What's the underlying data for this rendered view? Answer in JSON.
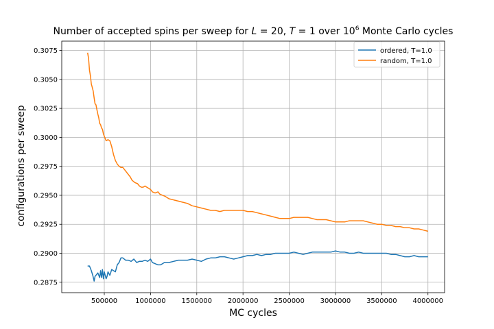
{
  "chart_data": {
    "type": "line",
    "title": {
      "prefix": "Number of accepted spins per sweep for ",
      "L_var": "L",
      "L_value": " = 20, ",
      "T_var": "T",
      "T_value": " = 1 over 10",
      "exponent": "6",
      "suffix": " Monte Carlo cycles"
    },
    "xlabel": "MC cycles",
    "ylabel": "configurations per sweep",
    "xlim": [
      40000,
      4180000
    ],
    "ylim": [
      0.2866,
      0.3083
    ],
    "xticks": [
      500000,
      1000000,
      1500000,
      2000000,
      2500000,
      3000000,
      3500000,
      4000000
    ],
    "xtick_labels": [
      "500000",
      "1000000",
      "1500000",
      "2000000",
      "2500000",
      "3000000",
      "3500000",
      "4000000"
    ],
    "yticks": [
      0.2875,
      0.29,
      0.2925,
      0.295,
      0.2975,
      0.3,
      0.3025,
      0.305,
      0.3075
    ],
    "ytick_labels": [
      "0.2875",
      "0.2900",
      "0.2925",
      "0.2950",
      "0.2975",
      "0.3000",
      "0.3025",
      "0.3050",
      "0.3075"
    ],
    "grid": true,
    "legend_position": "top-right",
    "series": [
      {
        "name": "ordered, T=1.0",
        "color": "#1f77b4",
        "x": [
          320000,
          340000,
          350000,
          360000,
          375000,
          390000,
          400000,
          410000,
          430000,
          450000,
          460000,
          470000,
          480000,
          490000,
          500000,
          510000,
          520000,
          530000,
          540000,
          560000,
          580000,
          600000,
          620000,
          640000,
          660000,
          680000,
          700000,
          730000,
          760000,
          790000,
          820000,
          850000,
          880000,
          910000,
          940000,
          970000,
          1000000,
          1020000,
          1050000,
          1080000,
          1110000,
          1150000,
          1200000,
          1250000,
          1300000,
          1350000,
          1400000,
          1450000,
          1500000,
          1550000,
          1600000,
          1650000,
          1700000,
          1750000,
          1800000,
          1850000,
          1900000,
          1950000,
          2000000,
          2050000,
          2100000,
          2150000,
          2200000,
          2250000,
          2300000,
          2350000,
          2400000,
          2450000,
          2500000,
          2550000,
          2600000,
          2650000,
          2700000,
          2750000,
          2800000,
          2850000,
          2900000,
          2950000,
          3000000,
          3050000,
          3100000,
          3150000,
          3200000,
          3250000,
          3300000,
          3350000,
          3400000,
          3450000,
          3500000,
          3550000,
          3600000,
          3650000,
          3700000,
          3750000,
          3800000,
          3850000,
          3900000,
          3950000,
          4000000
        ],
        "y": [
          0.2889,
          0.2889,
          0.2887,
          0.2885,
          0.2881,
          0.2876,
          0.288,
          0.2881,
          0.2883,
          0.2879,
          0.2885,
          0.2879,
          0.2886,
          0.2878,
          0.2884,
          0.2881,
          0.2878,
          0.288,
          0.2884,
          0.2881,
          0.2886,
          0.2885,
          0.2884,
          0.289,
          0.2892,
          0.2896,
          0.2896,
          0.2894,
          0.2894,
          0.2893,
          0.2895,
          0.2892,
          0.2893,
          0.2893,
          0.2894,
          0.2893,
          0.2895,
          0.2892,
          0.2891,
          0.289,
          0.289,
          0.2892,
          0.2892,
          0.2893,
          0.2894,
          0.2894,
          0.2894,
          0.2895,
          0.2894,
          0.2893,
          0.2895,
          0.2896,
          0.2896,
          0.2897,
          0.2897,
          0.2896,
          0.2895,
          0.2896,
          0.2897,
          0.2898,
          0.2898,
          0.2899,
          0.2898,
          0.2899,
          0.2899,
          0.29,
          0.29,
          0.29,
          0.29,
          0.2901,
          0.29,
          0.2899,
          0.29,
          0.2901,
          0.2901,
          0.2901,
          0.2901,
          0.2901,
          0.2902,
          0.2901,
          0.2901,
          0.29,
          0.29,
          0.2901,
          0.29,
          0.29,
          0.29,
          0.29,
          0.29,
          0.29,
          0.2899,
          0.2899,
          0.2898,
          0.2897,
          0.2897,
          0.2898,
          0.2897,
          0.2897,
          0.2897
        ]
      },
      {
        "name": "random, T=1.0",
        "color": "#ff7f0e",
        "x": [
          320000,
          330000,
          340000,
          350000,
          360000,
          370000,
          380000,
          390000,
          400000,
          410000,
          420000,
          430000,
          440000,
          450000,
          460000,
          470000,
          480000,
          490000,
          500000,
          520000,
          540000,
          560000,
          580000,
          600000,
          620000,
          640000,
          660000,
          680000,
          700000,
          720000,
          740000,
          760000,
          780000,
          800000,
          830000,
          860000,
          880000,
          900000,
          920000,
          940000,
          960000,
          980000,
          1000000,
          1020000,
          1050000,
          1080000,
          1100000,
          1130000,
          1160000,
          1200000,
          1250000,
          1300000,
          1350000,
          1400000,
          1450000,
          1500000,
          1550000,
          1600000,
          1650000,
          1700000,
          1750000,
          1800000,
          1850000,
          1900000,
          1950000,
          2000000,
          2050000,
          2100000,
          2150000,
          2200000,
          2250000,
          2300000,
          2350000,
          2400000,
          2450000,
          2500000,
          2550000,
          2600000,
          2650000,
          2700000,
          2750000,
          2800000,
          2850000,
          2900000,
          2950000,
          3000000,
          3050000,
          3100000,
          3150000,
          3200000,
          3250000,
          3300000,
          3350000,
          3400000,
          3450000,
          3500000,
          3550000,
          3600000,
          3650000,
          3700000,
          3750000,
          3800000,
          3850000,
          3900000,
          3950000,
          4000000
        ],
        "y": [
          0.3073,
          0.3068,
          0.3058,
          0.3053,
          0.3046,
          0.3043,
          0.304,
          0.3034,
          0.3029,
          0.3028,
          0.3024,
          0.302,
          0.3017,
          0.3012,
          0.3011,
          0.3008,
          0.3007,
          0.3003,
          0.3001,
          0.2997,
          0.2998,
          0.2997,
          0.2992,
          0.2985,
          0.298,
          0.2977,
          0.2975,
          0.2974,
          0.2974,
          0.2972,
          0.297,
          0.2968,
          0.2966,
          0.2963,
          0.2961,
          0.296,
          0.2958,
          0.2957,
          0.2957,
          0.2958,
          0.2957,
          0.2956,
          0.2955,
          0.2953,
          0.2952,
          0.2953,
          0.2951,
          0.295,
          0.2949,
          0.2947,
          0.2946,
          0.2945,
          0.2944,
          0.2943,
          0.2941,
          0.294,
          0.2939,
          0.2938,
          0.2937,
          0.2937,
          0.2936,
          0.2937,
          0.2937,
          0.2937,
          0.2937,
          0.2937,
          0.2936,
          0.2936,
          0.2935,
          0.2934,
          0.2933,
          0.2932,
          0.2931,
          0.293,
          0.293,
          0.293,
          0.2931,
          0.2931,
          0.2931,
          0.2931,
          0.293,
          0.2929,
          0.2929,
          0.2929,
          0.2928,
          0.2927,
          0.2927,
          0.2927,
          0.2928,
          0.2928,
          0.2928,
          0.2928,
          0.2927,
          0.2926,
          0.2925,
          0.2925,
          0.2924,
          0.2924,
          0.2923,
          0.2923,
          0.2922,
          0.2922,
          0.2921,
          0.2921,
          0.292,
          0.2919
        ]
      }
    ]
  }
}
